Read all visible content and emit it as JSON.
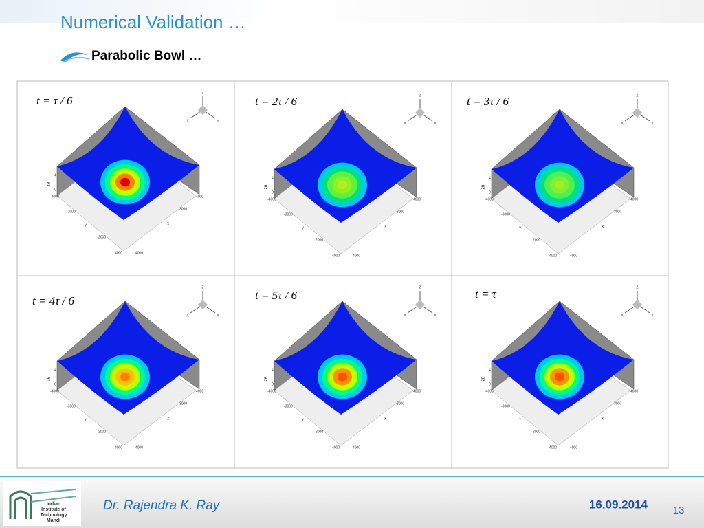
{
  "header": {
    "title": "Numerical Validation …",
    "subtitle": "Parabolic Bowl …"
  },
  "panels": [
    {
      "label": "t = τ / 6"
    },
    {
      "label": "t = 2τ / 6"
    },
    {
      "label": "t = 3τ / 6"
    },
    {
      "label": "t = 4τ / 6"
    },
    {
      "label": "t = 5τ / 6"
    },
    {
      "label": "t = τ"
    }
  ],
  "plot_labels": {
    "z_axis": "ZB",
    "z_ticks": [
      "4",
      "0"
    ],
    "left_ticks": [
      "-4000",
      "-3000",
      "2000",
      "4000"
    ],
    "right_ticks": [
      "4000",
      "3000",
      "4000"
    ],
    "y_axis": "Y",
    "x_axis": "X",
    "triad": [
      "Z",
      "X",
      "Y"
    ]
  },
  "footer": {
    "author": "Dr. Rajendra K. Ray",
    "date": "16.09.2014",
    "page": "13",
    "logo_text": [
      "Indian",
      "Institute of",
      "Technology",
      "Mandi"
    ]
  }
}
